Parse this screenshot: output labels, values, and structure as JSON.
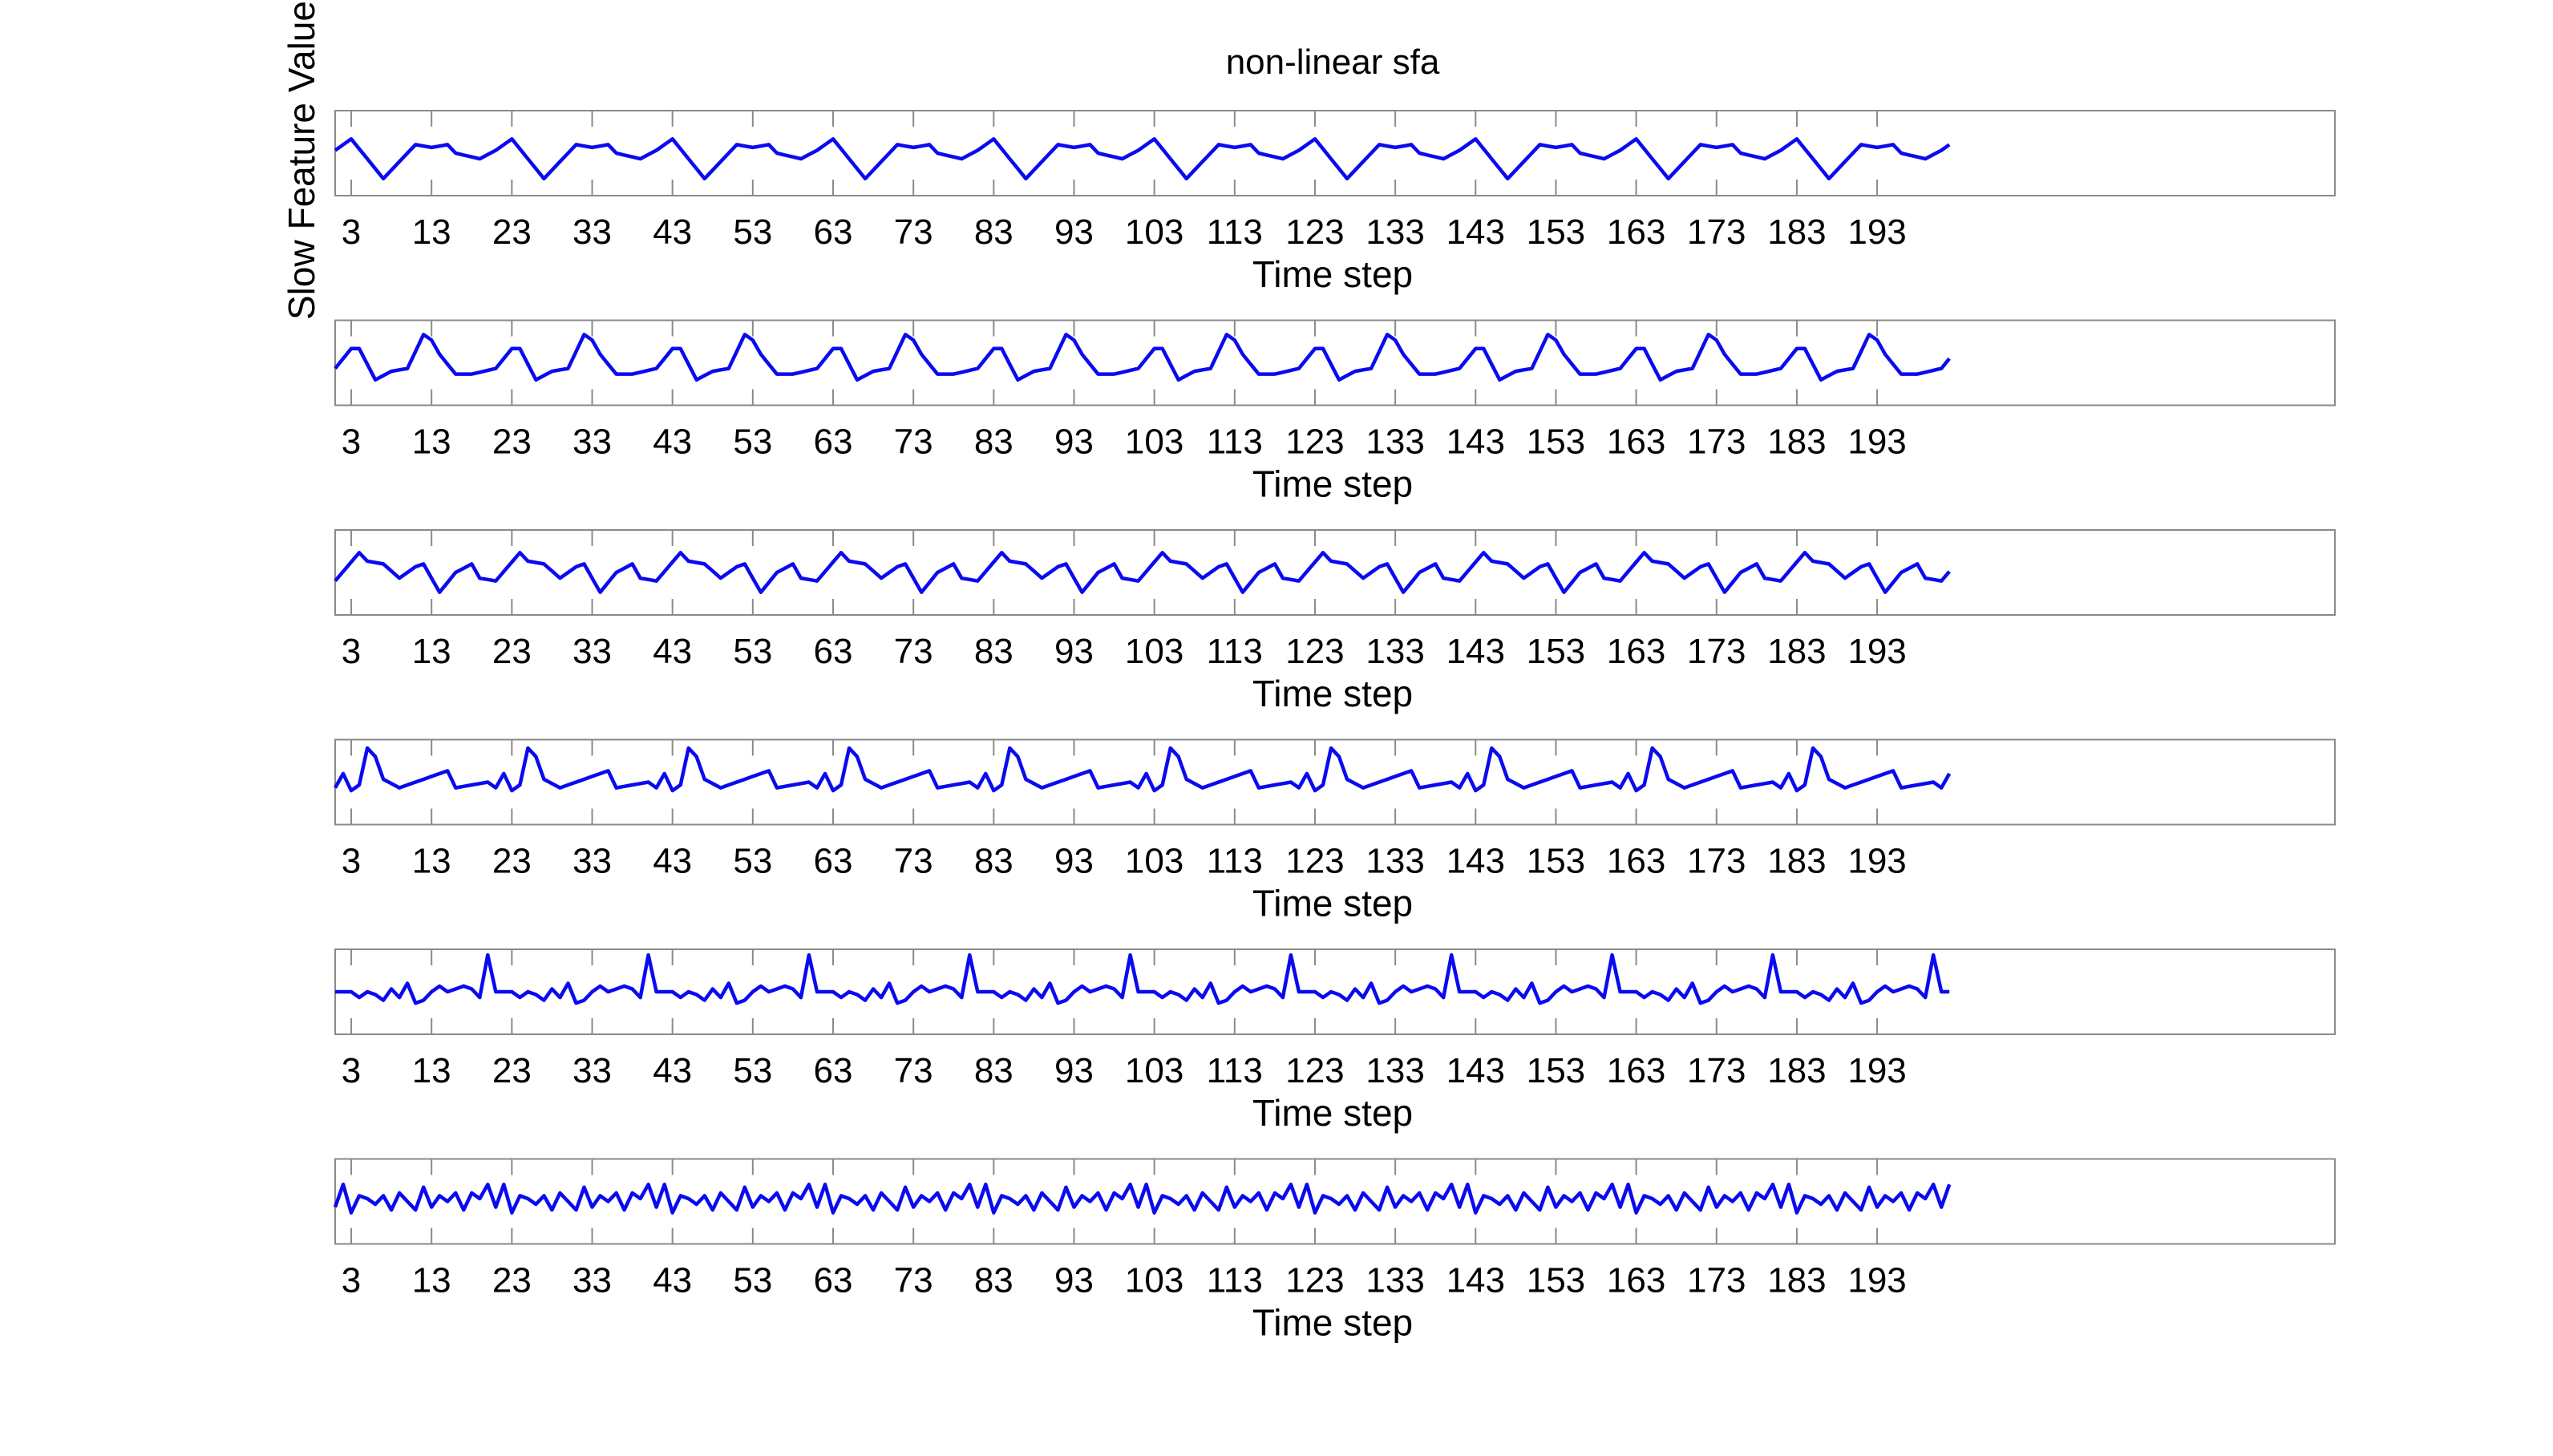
{
  "chart_data": {
    "type": "line",
    "title": "non-linear sfa",
    "ylabel": "Slow Feature Value",
    "xlabel": "Time step",
    "x_range": [
      1,
      250
    ],
    "x_ticks": [
      3,
      13,
      23,
      33,
      43,
      53,
      63,
      73,
      83,
      93,
      103,
      113,
      123,
      133,
      143,
      153,
      163,
      173,
      183,
      193
    ],
    "grid": false,
    "line_color": "#0a0af0",
    "panels": [
      {
        "period": 20,
        "ylim": [
          -1.5,
          1.5
        ],
        "shape": [
          [
            0,
            0.1
          ],
          [
            2,
            0.5
          ],
          [
            6,
            -0.9
          ],
          [
            10,
            0.3
          ],
          [
            12,
            0.2
          ],
          [
            14,
            0.3
          ],
          [
            15,
            0.0
          ],
          [
            18,
            -0.2
          ],
          [
            20,
            0.1
          ]
        ]
      },
      {
        "period": 20,
        "ylim": [
          -1.5,
          1.5
        ],
        "shape": [
          [
            0,
            -0.2
          ],
          [
            2,
            0.5
          ],
          [
            3,
            0.5
          ],
          [
            5,
            -0.6
          ],
          [
            7,
            -0.3
          ],
          [
            9,
            -0.2
          ],
          [
            11,
            1.0
          ],
          [
            12,
            0.8
          ],
          [
            13,
            0.3
          ],
          [
            15,
            -0.4
          ],
          [
            17,
            -0.4
          ],
          [
            20,
            -0.2
          ]
        ]
      },
      {
        "period": 20,
        "ylim": [
          -1.5,
          1.5
        ],
        "shape": [
          [
            0,
            -0.3
          ],
          [
            3,
            0.7
          ],
          [
            4,
            0.4
          ],
          [
            6,
            0.3
          ],
          [
            8,
            -0.2
          ],
          [
            10,
            0.2
          ],
          [
            11,
            0.3
          ],
          [
            13,
            -0.7
          ],
          [
            15,
            0.0
          ],
          [
            17,
            0.3
          ],
          [
            18,
            -0.2
          ],
          [
            20,
            -0.3
          ]
        ]
      },
      {
        "period": 20,
        "ylim": [
          -1.5,
          1.5
        ],
        "shape": [
          [
            0,
            -0.2
          ],
          [
            1,
            0.3
          ],
          [
            2,
            -0.3
          ],
          [
            3,
            -0.1
          ],
          [
            4,
            1.2
          ],
          [
            5,
            0.9
          ],
          [
            6,
            0.1
          ],
          [
            8,
            -0.2
          ],
          [
            10,
            0.0
          ],
          [
            12,
            0.2
          ],
          [
            14,
            0.4
          ],
          [
            15,
            -0.2
          ],
          [
            17,
            -0.1
          ],
          [
            19,
            0.0
          ],
          [
            20,
            -0.2
          ]
        ]
      },
      {
        "period": 20,
        "ylim": [
          -1.5,
          1.5
        ],
        "shape": [
          [
            0,
            0.0
          ],
          [
            2,
            0.0
          ],
          [
            3,
            -0.2
          ],
          [
            4,
            0.0
          ],
          [
            5,
            -0.1
          ],
          [
            6,
            -0.3
          ],
          [
            7,
            0.1
          ],
          [
            8,
            -0.2
          ],
          [
            9,
            0.3
          ],
          [
            10,
            -0.4
          ],
          [
            11,
            -0.3
          ],
          [
            12,
            0.0
          ],
          [
            13,
            0.2
          ],
          [
            14,
            0.0
          ],
          [
            16,
            0.2
          ],
          [
            17,
            0.1
          ],
          [
            18,
            -0.2
          ],
          [
            19,
            1.3
          ],
          [
            20,
            0.0
          ]
        ]
      },
      {
        "period": 20,
        "ylim": [
          -1.5,
          1.5
        ],
        "shape": [
          [
            0,
            -0.2
          ],
          [
            1,
            0.6
          ],
          [
            2,
            -0.4
          ],
          [
            3,
            0.2
          ],
          [
            4,
            0.1
          ],
          [
            5,
            -0.1
          ],
          [
            6,
            0.2
          ],
          [
            7,
            -0.3
          ],
          [
            8,
            0.3
          ],
          [
            9,
            0.0
          ],
          [
            10,
            -0.3
          ],
          [
            11,
            0.5
          ],
          [
            12,
            -0.2
          ],
          [
            13,
            0.2
          ],
          [
            14,
            0.0
          ],
          [
            15,
            0.3
          ],
          [
            16,
            -0.3
          ],
          [
            17,
            0.3
          ],
          [
            18,
            0.1
          ],
          [
            19,
            0.6
          ],
          [
            20,
            -0.2
          ]
        ]
      }
    ]
  }
}
